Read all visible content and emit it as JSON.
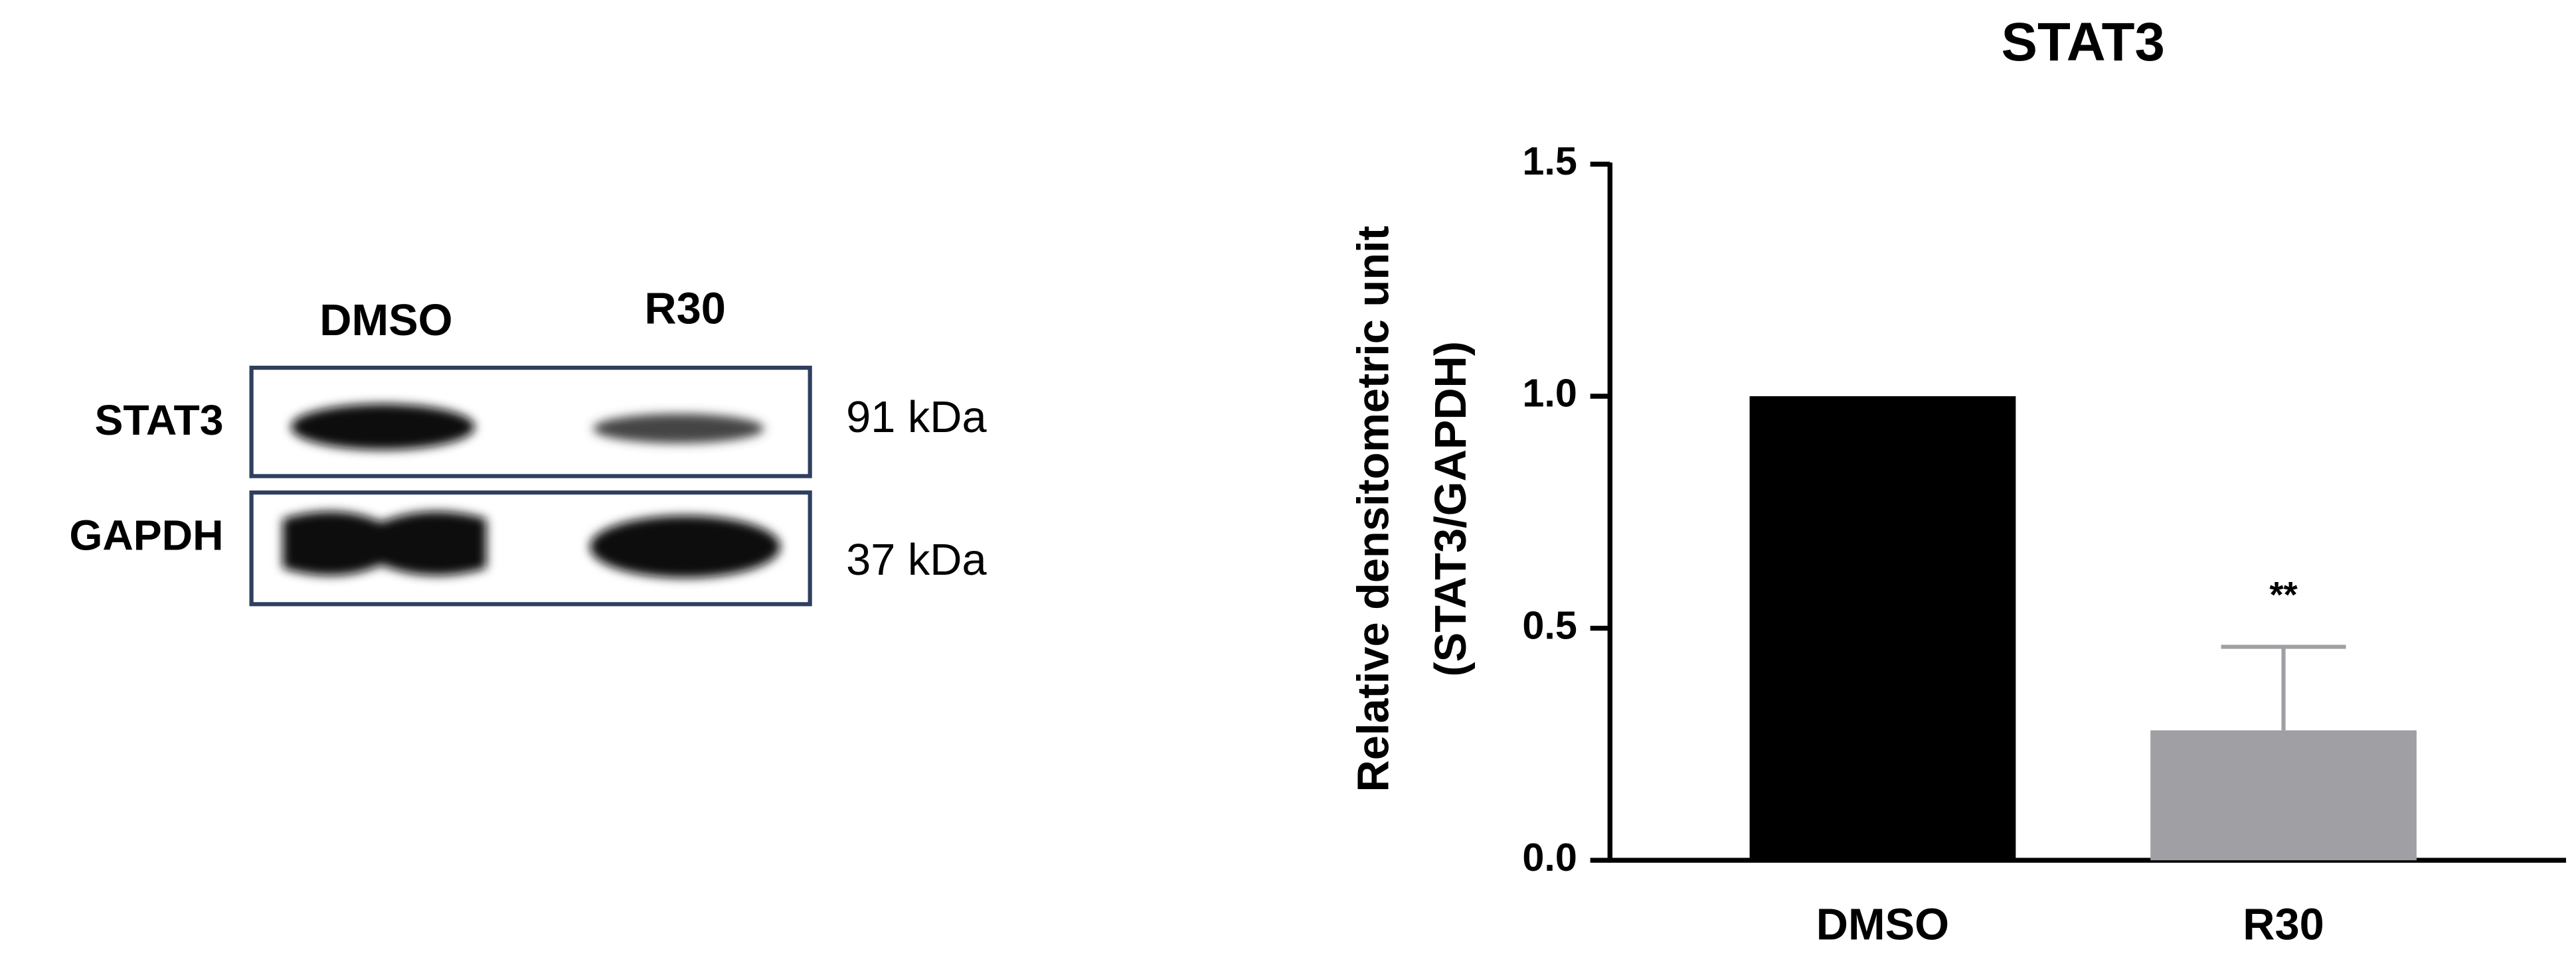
{
  "blot": {
    "lanes": [
      "DMSO",
      "R30"
    ],
    "rows": [
      {
        "protein": "STAT3",
        "size": "91 kDa"
      },
      {
        "protein": "GAPDH",
        "size": "37 kDa"
      }
    ]
  },
  "chart_data": {
    "type": "bar",
    "title": "STAT3",
    "ylabel": [
      "Relative densitometric unit",
      "(STAT3/GAPDH)"
    ],
    "categories": [
      "DMSO",
      "R30"
    ],
    "values": [
      1.0,
      0.28
    ],
    "errors": [
      null,
      0.18
    ],
    "colors": [
      "#000000",
      "#a0a0a4"
    ],
    "annotation": "**",
    "ylim": [
      0,
      1.5
    ],
    "yticks": [
      {
        "value": 0,
        "label": "0.0"
      },
      {
        "value": 0.5,
        "label": "0.5"
      },
      {
        "value": 1,
        "label": "1.0"
      },
      {
        "value": 1.5,
        "label": "1.5"
      }
    ]
  }
}
